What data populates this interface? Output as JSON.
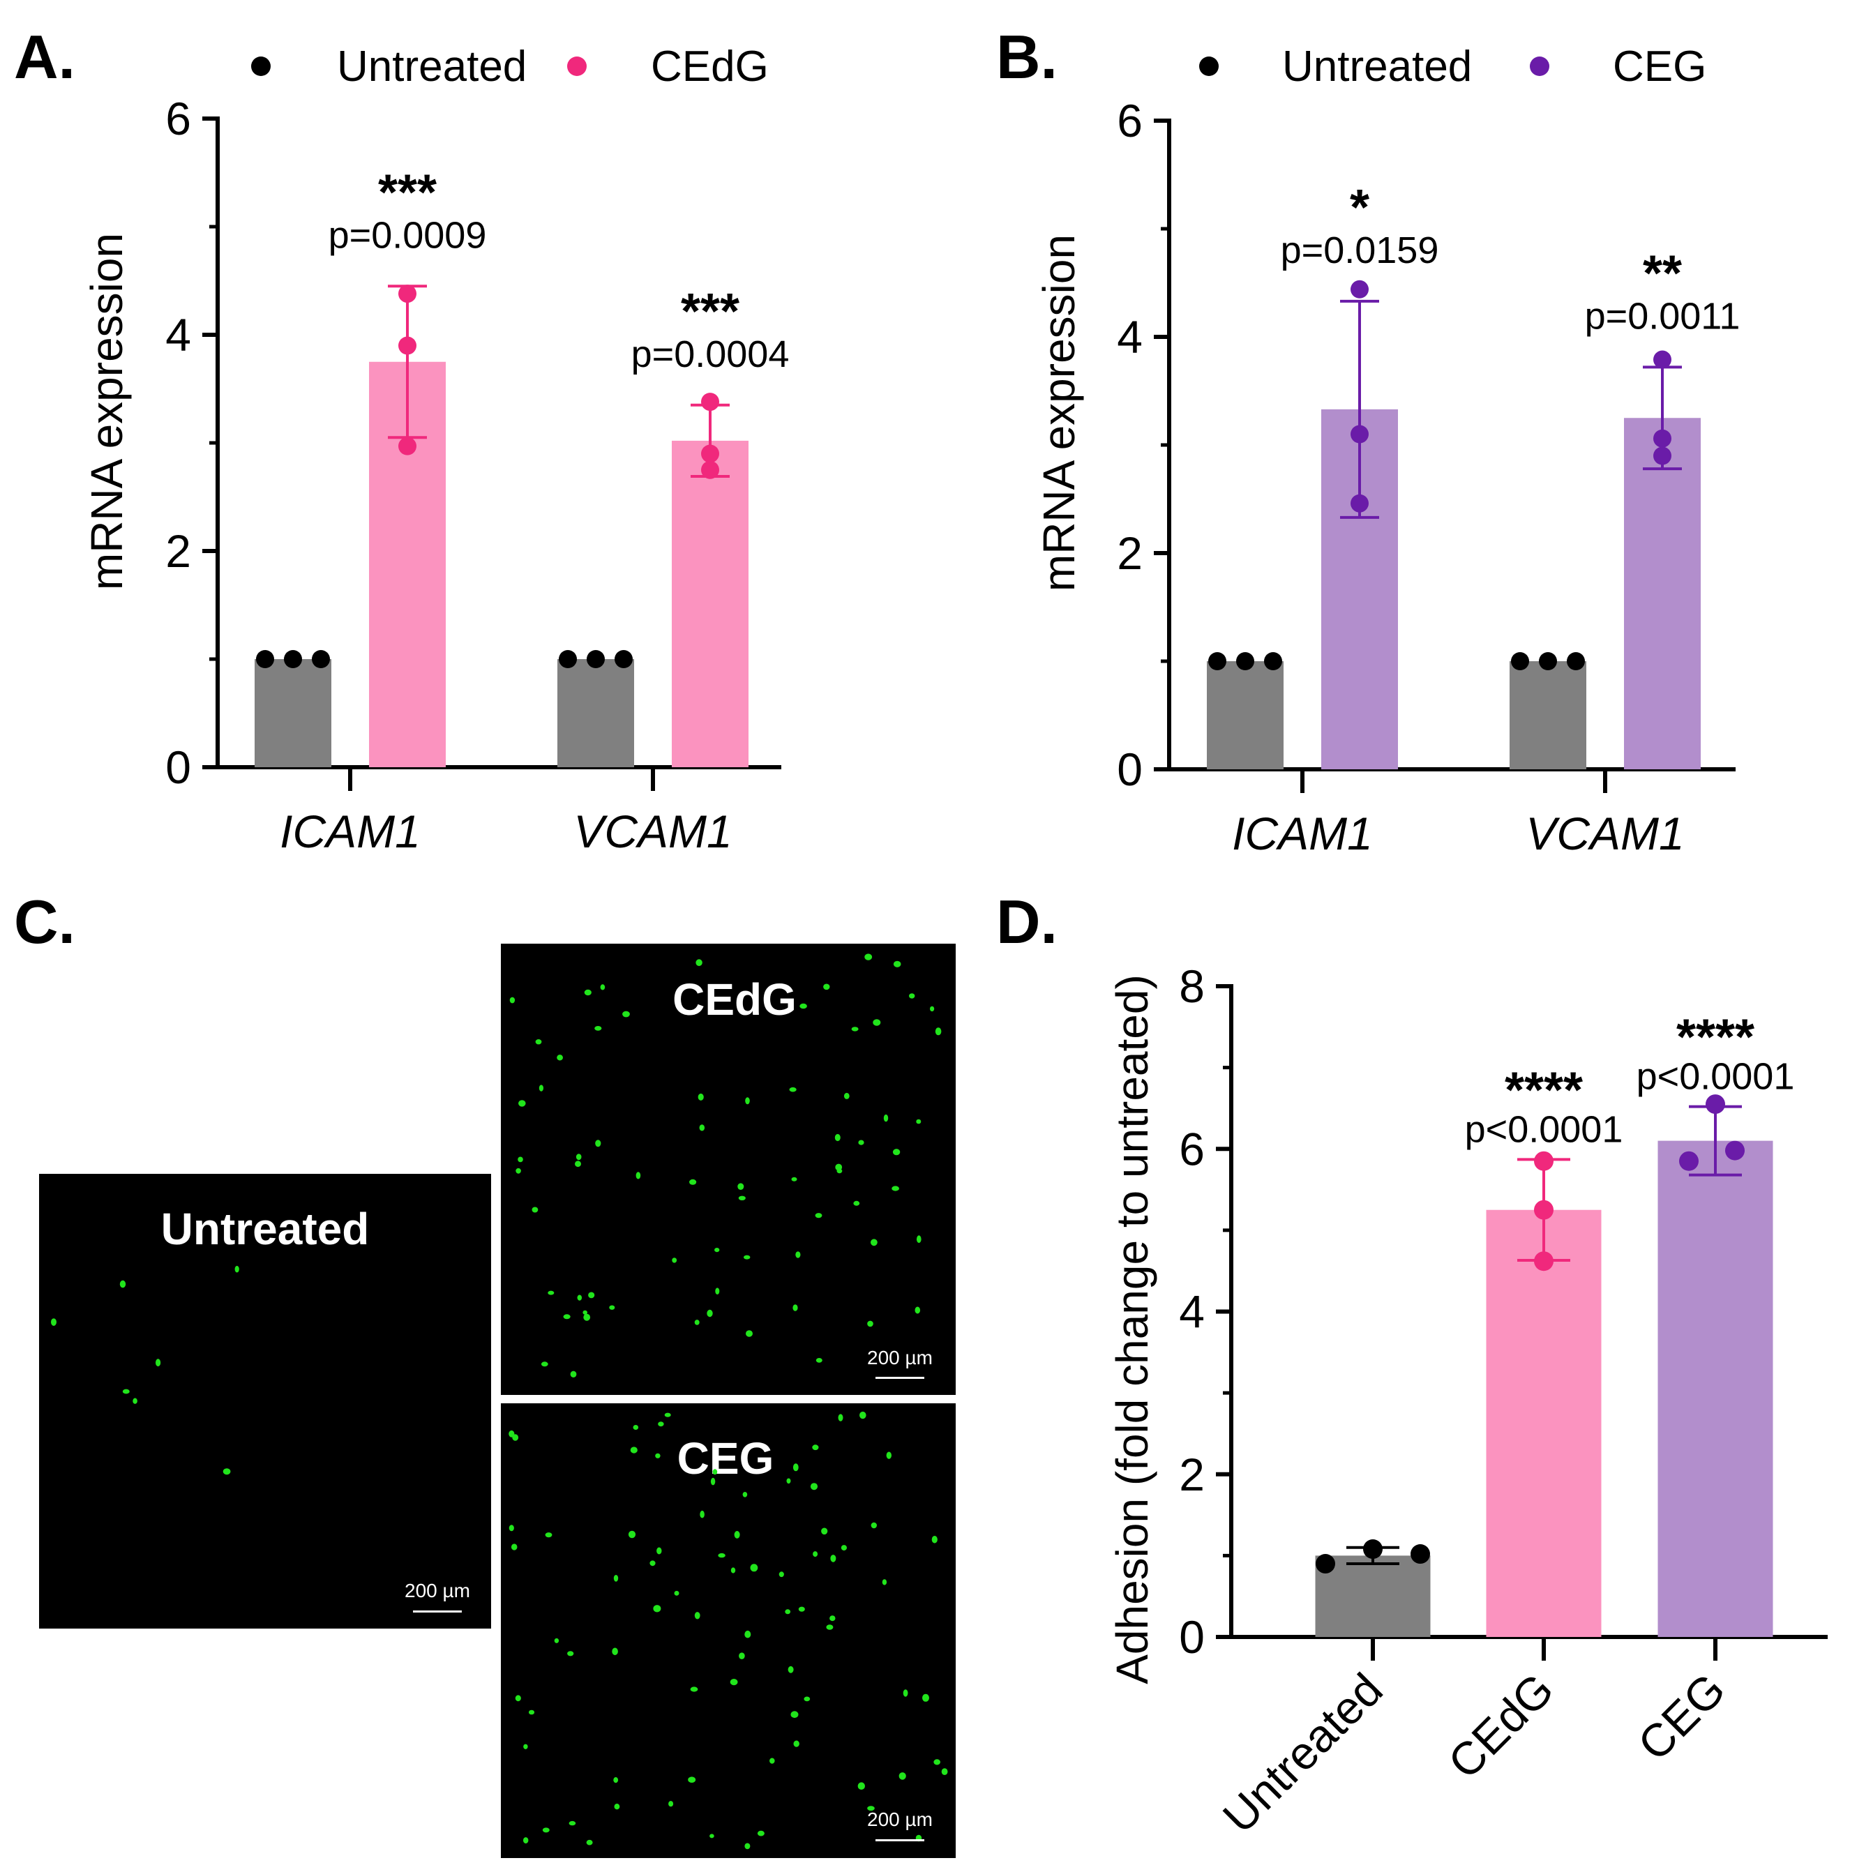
{
  "colors": {
    "untreated_bar": "#808080",
    "untreated_dot": "#000000",
    "cedg_bar": "#fb93bf",
    "cedg_dot": "#f0287c",
    "ceg_bar": "#b28ecc",
    "ceg_dot": "#6a1ca8",
    "cell_green": "#21e51c",
    "micrograph_bg": "#000000"
  },
  "panels": {
    "A": {
      "label": "A."
    },
    "B": {
      "label": "B."
    },
    "C": {
      "label": "C.",
      "images": [
        {
          "title": "Untreated",
          "scale_bar": "200 µm"
        },
        {
          "title": "CEdG",
          "scale_bar": "200 µm"
        },
        {
          "title": "CEG",
          "scale_bar": "200 µm"
        }
      ]
    },
    "D": {
      "label": "D."
    }
  },
  "chart_data": [
    {
      "panel": "A",
      "type": "bar",
      "ylabel": "mRNA expression",
      "ylim": [
        0,
        6
      ],
      "yticks": [
        0,
        2,
        4,
        6
      ],
      "categories": [
        "ICAM1",
        "VCAM1"
      ],
      "legend": [
        "Untreated",
        "CEdG"
      ],
      "series": [
        {
          "name": "Untreated",
          "color_key": "untreated",
          "values": [
            1.0,
            1.0
          ],
          "points": [
            [
              1.0,
              1.0,
              1.0
            ],
            [
              1.0,
              1.0,
              1.0
            ]
          ],
          "errors": [
            0,
            0
          ]
        },
        {
          "name": "CEdG",
          "color_key": "cedg",
          "values": [
            3.75,
            3.02
          ],
          "points": [
            [
              4.38,
              3.9,
              2.97
            ],
            [
              3.38,
              2.75,
              2.9
            ]
          ],
          "errors": [
            0.7,
            0.33
          ]
        }
      ],
      "annotations": [
        {
          "category": "ICAM1",
          "stars": "***",
          "p": "p=0.0009"
        },
        {
          "category": "VCAM1",
          "stars": "***",
          "p": "p=0.0004"
        }
      ]
    },
    {
      "panel": "B",
      "type": "bar",
      "ylabel": "mRNA expression",
      "ylim": [
        0,
        6
      ],
      "yticks": [
        0,
        2,
        4,
        6
      ],
      "categories": [
        "ICAM1",
        "VCAM1"
      ],
      "legend": [
        "Untreated",
        "CEG"
      ],
      "series": [
        {
          "name": "Untreated",
          "color_key": "untreated",
          "values": [
            1.0,
            1.0
          ],
          "points": [
            [
              1.0,
              1.0,
              1.0
            ],
            [
              1.0,
              1.0,
              1.0
            ]
          ],
          "errors": [
            0,
            0
          ]
        },
        {
          "name": "CEG",
          "color_key": "ceg",
          "values": [
            3.33,
            3.25
          ],
          "points": [
            [
              4.44,
              3.1,
              2.46
            ],
            [
              3.79,
              2.9,
              3.06
            ]
          ],
          "errors": [
            1.0,
            0.47
          ]
        }
      ],
      "annotations": [
        {
          "category": "ICAM1",
          "stars": "*",
          "p": "p=0.0159"
        },
        {
          "category": "VCAM1",
          "stars": "**",
          "p": "p=0.0011"
        }
      ]
    },
    {
      "panel": "D",
      "type": "bar",
      "ylabel": "Adhesion (fold change to untreated)",
      "ylim": [
        0,
        8
      ],
      "yticks": [
        0,
        2,
        4,
        6,
        8
      ],
      "categories": [
        "Untreated",
        "CEdG",
        "CEG"
      ],
      "series": [
        {
          "name": "Adhesion",
          "values": [
            1.0,
            5.25,
            6.1
          ],
          "color_keys": [
            "untreated",
            "cedg",
            "ceg"
          ],
          "points": [
            [
              0.9,
              1.08,
              1.02
            ],
            [
              5.85,
              5.25,
              4.62
            ],
            [
              6.55,
              5.85,
              5.98
            ]
          ],
          "errors": [
            0.1,
            0.62,
            0.42
          ]
        }
      ],
      "annotations": [
        {
          "category": "CEdG",
          "stars": "****",
          "p": "p<0.0001"
        },
        {
          "category": "CEG",
          "stars": "****",
          "p": "p<0.0001"
        }
      ]
    }
  ]
}
